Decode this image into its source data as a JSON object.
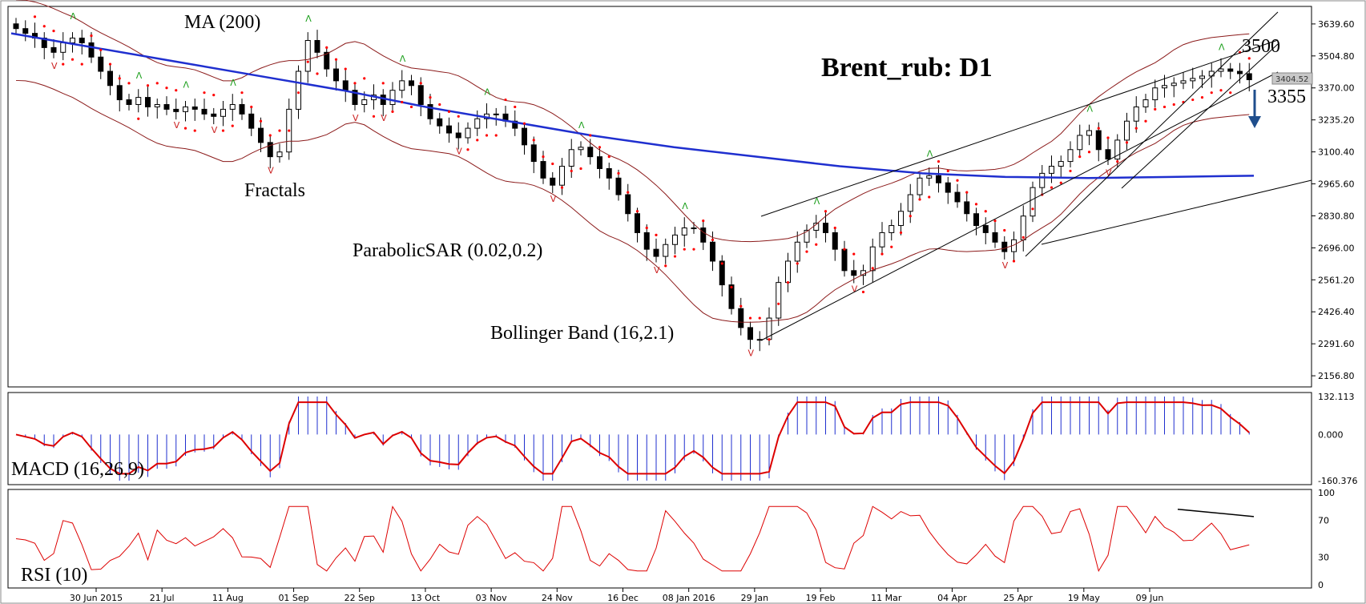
{
  "chart_data": {
    "type": "candlestick",
    "title": "Brent_rub: D1",
    "instrument": "Brent_rub",
    "timeframe": "D1",
    "current_price": "3404.52",
    "price_axis_ticks": [
      "3639.60",
      "3504.80",
      "3370.00",
      "3235.20",
      "3100.40",
      "2965.60",
      "2830.80",
      "2696.00",
      "2561.20",
      "2426.40",
      "2291.60",
      "2156.80"
    ],
    "price_ylim": [
      2120,
      3700
    ],
    "date_ticks": [
      "30 Jun 2015",
      "21 Jul",
      "11 Aug",
      "01 Sep",
      "22 Sep",
      "13 Oct",
      "03 Nov",
      "24 Nov",
      "16 Dec",
      "08 Jan 2016",
      "29 Jan",
      "19 Feb",
      "11 Mar",
      "04 Apr",
      "25 Apr",
      "19 May",
      "09 Jun"
    ],
    "indicators": {
      "ma": "MA (200)",
      "fractals": "Fractals",
      "sar": "ParabolicSAR (0.02,0.2)",
      "bollinger": "Bollinger Band (16,2.1)",
      "macd": "MACD (16,26,9)",
      "rsi": "RSI (10)"
    },
    "levels": {
      "resistance": "3500",
      "support": "3355"
    },
    "close_series": [
      3620,
      3600,
      3580,
      3540,
      3520,
      3560,
      3580,
      3560,
      3500,
      3440,
      3380,
      3320,
      3300,
      3330,
      3290,
      3300,
      3280,
      3270,
      3290,
      3280,
      3260,
      3250,
      3280,
      3300,
      3260,
      3200,
      3140,
      3080,
      3100,
      3280,
      3440,
      3570,
      3520,
      3450,
      3400,
      3360,
      3300,
      3320,
      3340,
      3300,
      3360,
      3400,
      3380,
      3300,
      3240,
      3210,
      3180,
      3160,
      3200,
      3240,
      3260,
      3260,
      3230,
      3200,
      3130,
      3060,
      2990,
      2960,
      3040,
      3110,
      3120,
      3080,
      3030,
      2990,
      2920,
      2840,
      2760,
      2690,
      2660,
      2710,
      2750,
      2780,
      2780,
      2720,
      2640,
      2540,
      2440,
      2360,
      2310,
      2310,
      2400,
      2550,
      2640,
      2720,
      2770,
      2800,
      2760,
      2690,
      2600,
      2580,
      2600,
      2700,
      2760,
      2790,
      2850,
      2920,
      2990,
      3000,
      2970,
      2930,
      2890,
      2840,
      2790,
      2760,
      2720,
      2680,
      2730,
      2830,
      2950,
      3010,
      3040,
      3060,
      3110,
      3170,
      3190,
      3110,
      3070,
      3150,
      3230,
      3290,
      3320,
      3370,
      3380,
      3390,
      3400,
      3410,
      3420,
      3440,
      3450,
      3440,
      3430,
      3404.52
    ],
    "ma200_series": [
      3600,
      3540,
      3480,
      3420,
      3360,
      3290,
      3230,
      3170,
      3120,
      3080,
      3040,
      3010,
      2995,
      2990,
      2995,
      3000
    ],
    "macd": {
      "ticks": [
        "132.113",
        "0.000",
        "-160.376"
      ],
      "ylim": [
        -160.376,
        132.113
      ]
    },
    "rsi": {
      "ticks": [
        "100",
        "70",
        "30",
        "0"
      ],
      "ylim": [
        0,
        100
      ]
    }
  }
}
